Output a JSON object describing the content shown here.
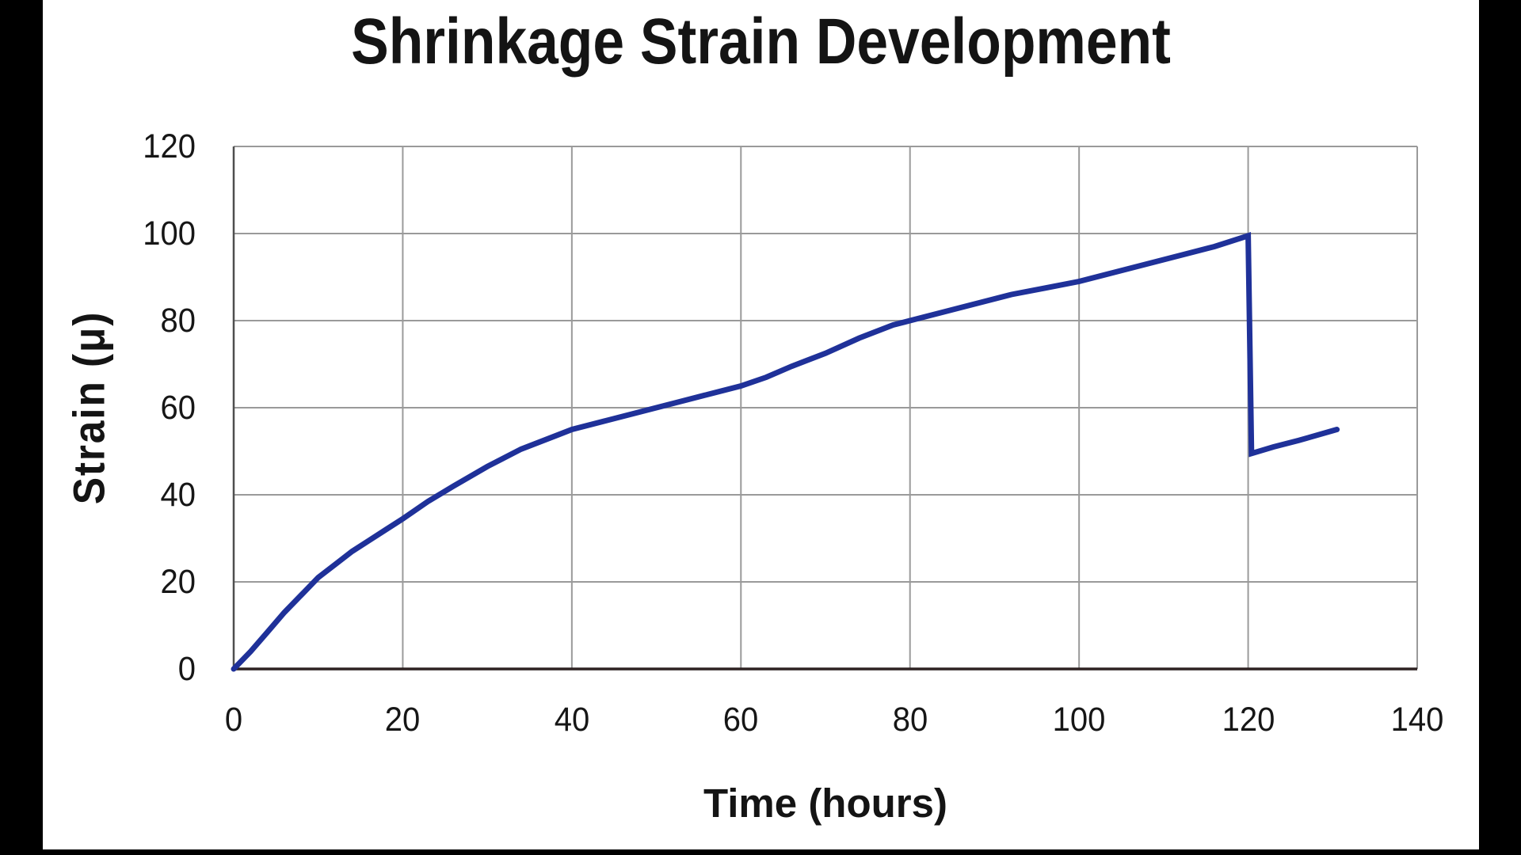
{
  "window": {
    "letterbox_color": "#000000",
    "content_background": "#ffffff"
  },
  "chart_data": {
    "type": "line",
    "title": "Shrinkage Strain Development",
    "xlabel": "Time (hours)",
    "ylabel": "Strain (μ)",
    "xlim": [
      0,
      140
    ],
    "ylim": [
      0,
      120
    ],
    "x_ticks": [
      0,
      20,
      40,
      60,
      80,
      100,
      120,
      140
    ],
    "y_ticks": [
      0,
      20,
      40,
      60,
      80,
      100,
      120
    ],
    "grid": true,
    "legend": false,
    "colors": {
      "line": "#1f3199",
      "grid": "#9a9a9a",
      "y_axis": "#4f4f4f",
      "x_axis": "#2e2222",
      "text": "#141414"
    },
    "series": [
      {
        "name": "Shrinkage strain",
        "points": [
          [
            0,
            0
          ],
          [
            2,
            4
          ],
          [
            4,
            8.5
          ],
          [
            6,
            13
          ],
          [
            8,
            17
          ],
          [
            10,
            21
          ],
          [
            12,
            24
          ],
          [
            14,
            27
          ],
          [
            16,
            29.5
          ],
          [
            18,
            32
          ],
          [
            20,
            34.5
          ],
          [
            23,
            38.5
          ],
          [
            26,
            42
          ],
          [
            30,
            46.5
          ],
          [
            34,
            50.5
          ],
          [
            38,
            53.5
          ],
          [
            40,
            55
          ],
          [
            44,
            57
          ],
          [
            48,
            59
          ],
          [
            52,
            61
          ],
          [
            56,
            63
          ],
          [
            60,
            65
          ],
          [
            63,
            67
          ],
          [
            66,
            69.5
          ],
          [
            70,
            72.5
          ],
          [
            74,
            76
          ],
          [
            78,
            79
          ],
          [
            80,
            80
          ],
          [
            84,
            82
          ],
          [
            88,
            84
          ],
          [
            92,
            86
          ],
          [
            96,
            87.5
          ],
          [
            100,
            89
          ],
          [
            104,
            91
          ],
          [
            108,
            93
          ],
          [
            112,
            95
          ],
          [
            116,
            97
          ],
          [
            120,
            99.5
          ],
          [
            120.4,
            49.5
          ],
          [
            123,
            51
          ],
          [
            126,
            52.5
          ],
          [
            130.5,
            55
          ]
        ]
      }
    ]
  }
}
